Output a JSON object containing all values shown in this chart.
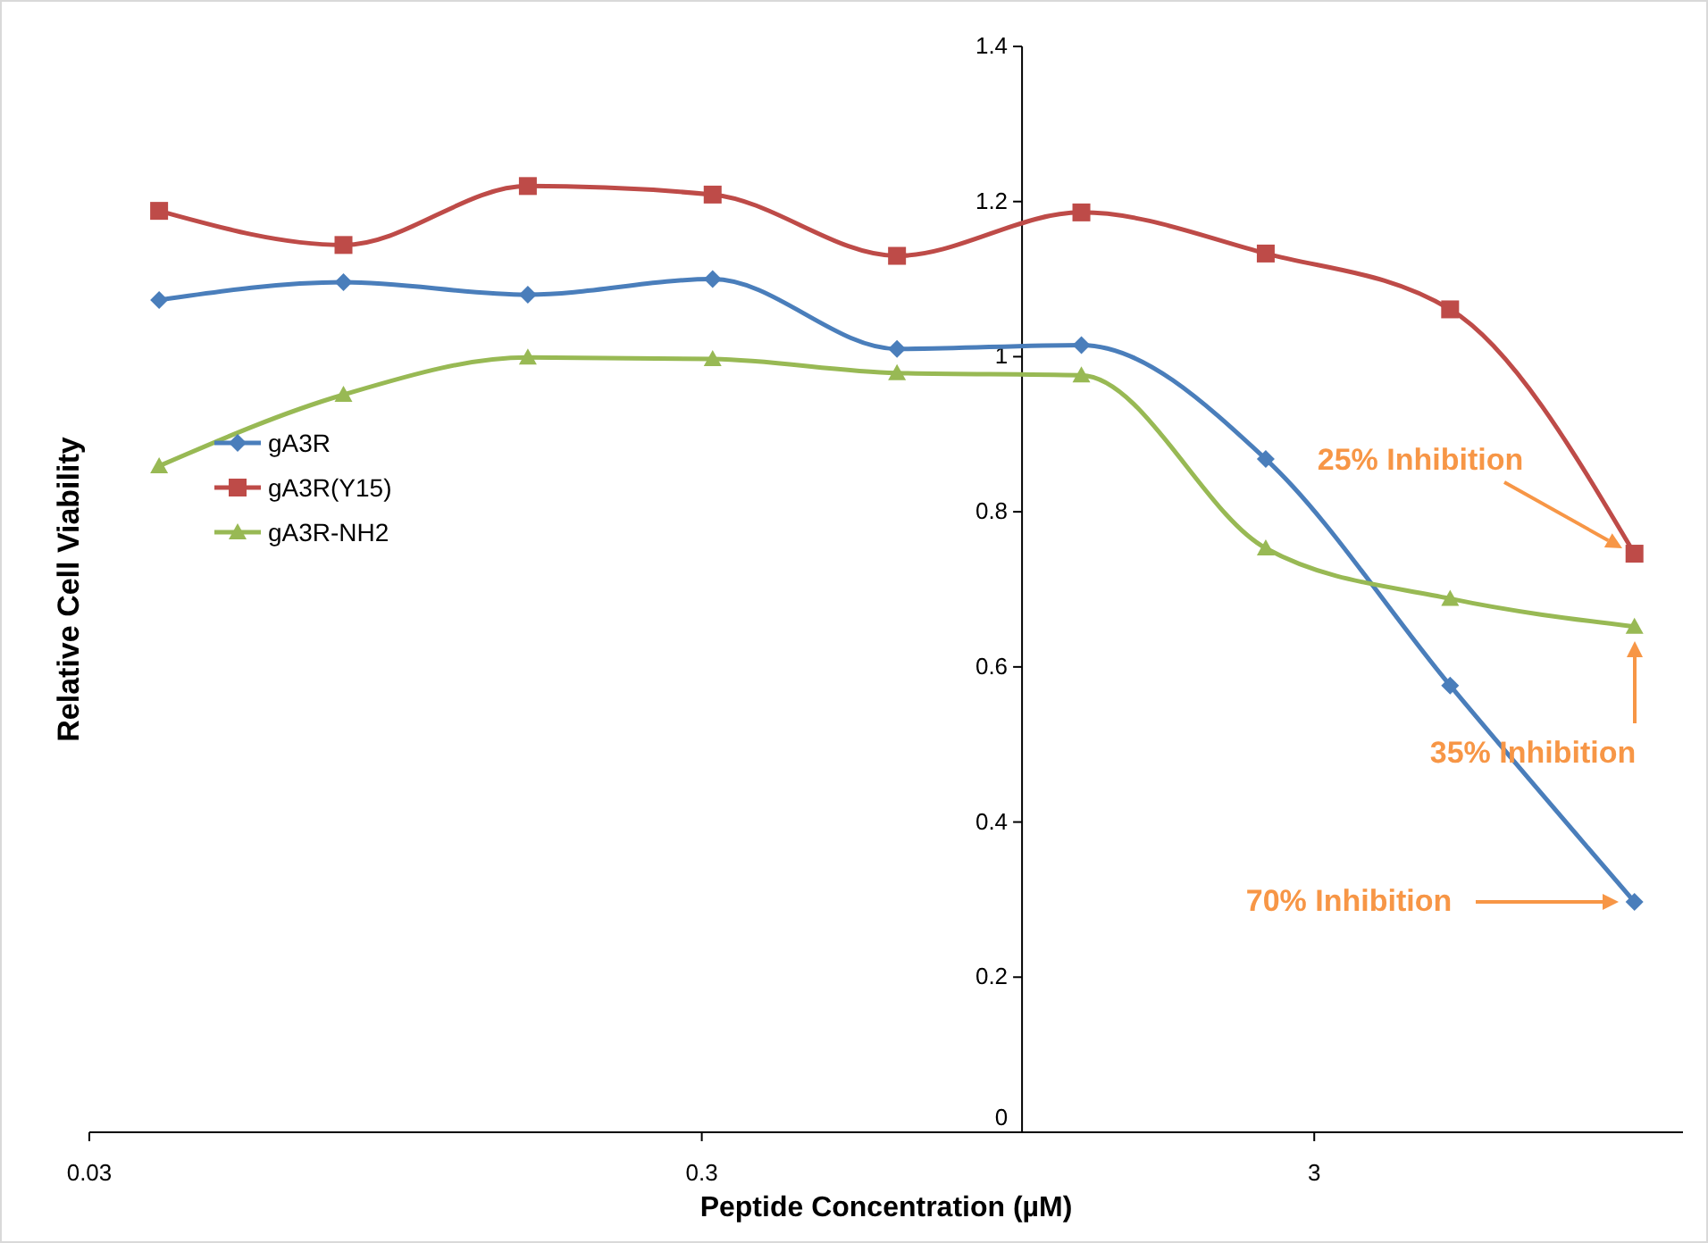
{
  "chart_data": {
    "type": "line",
    "xlabel": "Peptide Concentration (µM)",
    "ylabel": "Relative Cell Viability",
    "x": [
      0.039,
      0.078,
      0.156,
      0.3125,
      0.625,
      1.25,
      2.5,
      5,
      10
    ],
    "series": [
      {
        "name": "gA3R",
        "color": "#4a7ebb",
        "marker": "diamond",
        "values": [
          1.073,
          1.096,
          1.08,
          1.1,
          1.01,
          1.015,
          0.868,
          0.576,
          0.297
        ]
      },
      {
        "name": "gA3R(Y15)",
        "color": "#be4b48",
        "marker": "square",
        "values": [
          1.188,
          1.144,
          1.22,
          1.209,
          1.13,
          1.186,
          1.133,
          1.061,
          0.746
        ]
      },
      {
        "name": "gA3R-NH2",
        "color": "#98b954",
        "marker": "triangle",
        "values": [
          0.859,
          0.951,
          0.999,
          0.997,
          0.979,
          0.976,
          0.753,
          0.688,
          0.652
        ]
      }
    ],
    "log": "x",
    "xlim": [
      0.03,
      12
    ],
    "xticks": [
      0.03,
      0.3,
      3
    ],
    "ylim": [
      0,
      1.4
    ],
    "yticks": [
      0,
      0.2,
      0.4,
      0.6,
      0.8,
      1,
      1.2,
      1.4
    ],
    "grid": false,
    "legend": "left",
    "annotations": [
      "25% Inhibition",
      "35% Inhibition",
      "70% Inhibition"
    ]
  }
}
